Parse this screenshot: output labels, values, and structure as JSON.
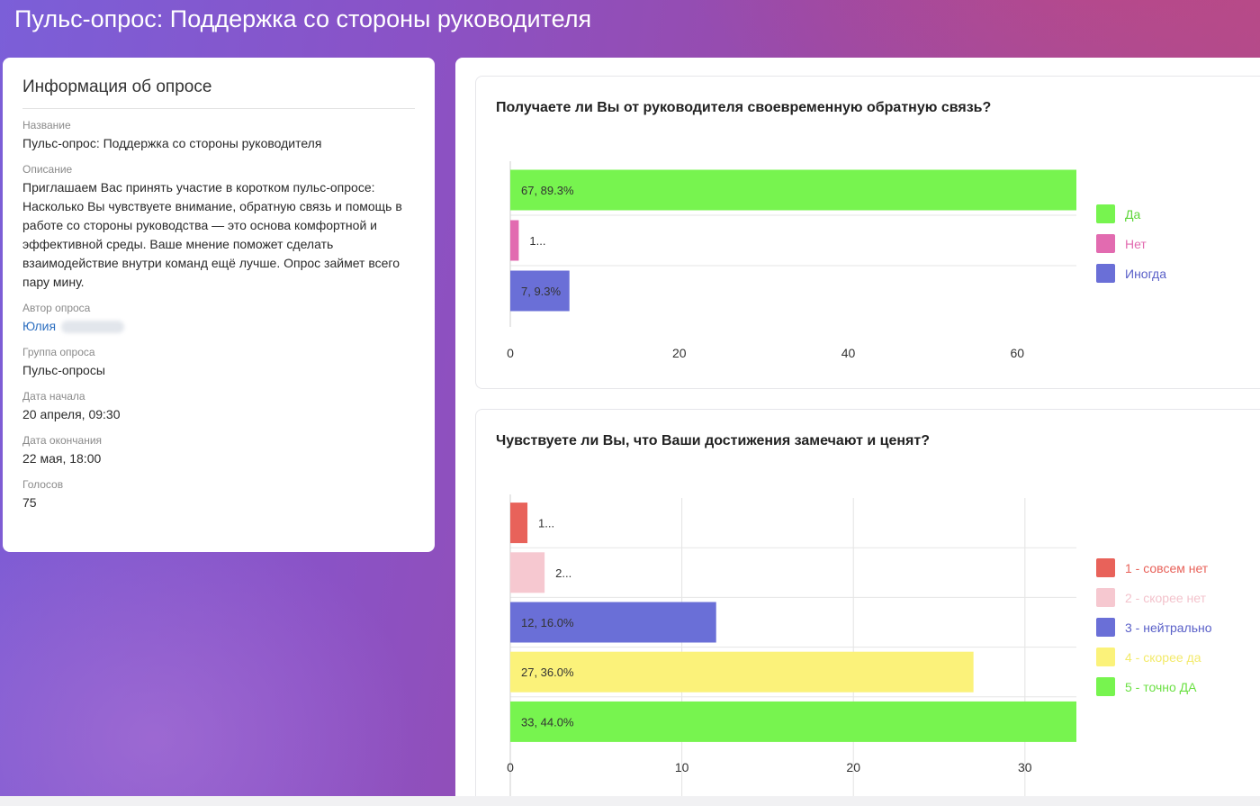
{
  "page": {
    "title": "Пульс-опрос: Поддержка со стороны руководителя"
  },
  "info": {
    "heading": "Информация об опросе",
    "fields": [
      {
        "label": "Название",
        "value": "Пульс-опрос: Поддержка со стороны руководителя"
      },
      {
        "label": "Описание",
        "value": "Приглашаем Вас принять участие в коротком пульс-опросе: Насколько Вы чувствуете внимание, обратную связь и помощь в работе со стороны руководства — это основа комфортной и эффективной среды. Ваше мнение поможет сделать взаимодействие внутри команд ещё лучше. Опрос займет всего пару мину."
      },
      {
        "label": "Автор опроса",
        "value": "Юлия"
      },
      {
        "label": "Группа опроса",
        "value": "Пульс-опросы"
      },
      {
        "label": "Дата начала",
        "value": "20 апреля, 09:30"
      },
      {
        "label": "Дата окончания",
        "value": "22 мая, 18:00"
      },
      {
        "label": "Голосов",
        "value": "75"
      }
    ]
  },
  "chart_data": [
    {
      "type": "bar",
      "orientation": "horizontal",
      "title": "Получаете ли Вы от руководителя своевременную обратную связь?",
      "categories": [
        "Да",
        "Нет",
        "Иногда"
      ],
      "values": [
        67,
        1,
        7
      ],
      "data_labels": [
        "67, 89.3%",
        "1...",
        "7, 9.3%"
      ],
      "colors": [
        "#77f44f",
        "#e26bb0",
        "#6a6fd7"
      ],
      "legend_colors": [
        "#77f44f",
        "#e26bb0",
        "#6a6fd7"
      ],
      "legend_text_colors": [
        "#5fd63a",
        "#e26bb0",
        "#5a60c8"
      ],
      "xlim": [
        0,
        67
      ],
      "xticks": [
        0,
        20,
        40,
        60
      ],
      "vertical_grid": false,
      "legend_position": "right"
    },
    {
      "type": "bar",
      "orientation": "horizontal",
      "title": "Чувствуете ли Вы, что Ваши достижения замечают и ценят?",
      "categories": [
        "1 - совсем нет",
        "2 - скорее нет",
        "3 - нейтрально",
        "4 - скорее да",
        "5 - точно ДА"
      ],
      "values": [
        1,
        2,
        12,
        27,
        33
      ],
      "data_labels": [
        "1...",
        "2...",
        "12, 16.0%",
        "27, 36.0%",
        "33, 44.0%"
      ],
      "colors": [
        "#e8625a",
        "#f6c8d0",
        "#6a6fd7",
        "#fbf27a",
        "#77f44f"
      ],
      "legend_colors": [
        "#e8625a",
        "#f6c8d0",
        "#6a6fd7",
        "#fbf27a",
        "#77f44f"
      ],
      "legend_text_colors": [
        "#e8625a",
        "#f3c3cc",
        "#5a60c8",
        "#f3ea6a",
        "#6be043"
      ],
      "xlim": [
        0,
        33
      ],
      "xticks": [
        0,
        10,
        20,
        30
      ],
      "vertical_grid": true,
      "legend_position": "right"
    }
  ]
}
